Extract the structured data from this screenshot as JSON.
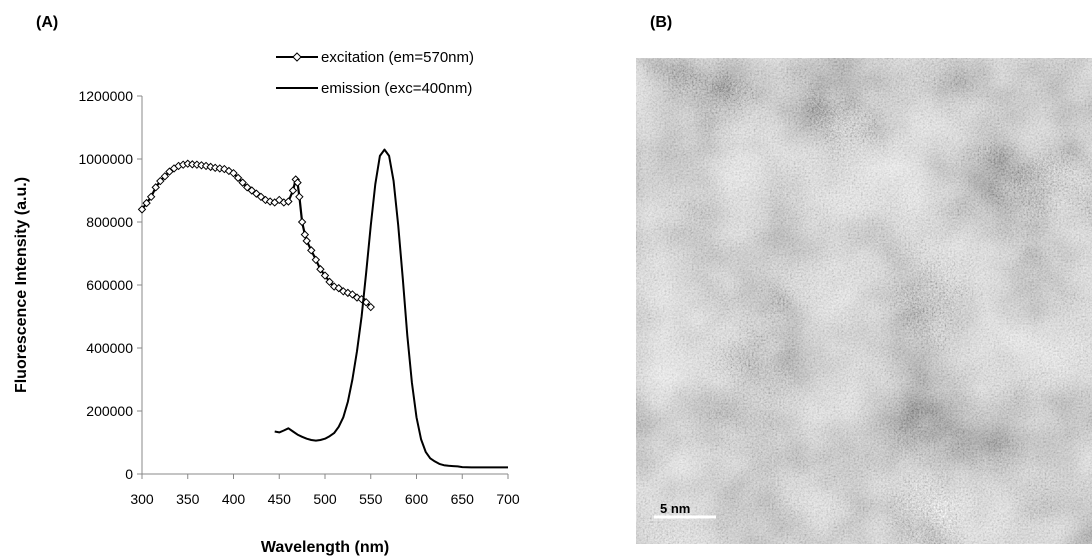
{
  "panels": {
    "a_label": "(A)",
    "b_label": "(B)"
  },
  "chart_data": {
    "type": "line",
    "xlabel": "Wavelength (nm)",
    "ylabel": "Fluorescence Intensity (a.u.)",
    "xlim": [
      300,
      700
    ],
    "ylim": [
      0,
      1200000
    ],
    "x_ticks": [
      "300",
      "350",
      "400",
      "450",
      "500",
      "550",
      "600",
      "650",
      "700"
    ],
    "y_ticks": [
      "0",
      "200000",
      "400000",
      "600000",
      "800000",
      "1000000",
      "1200000"
    ],
    "grid": false,
    "legend_position": "top-right",
    "series": [
      {
        "name": "excitation (em=570nm)",
        "marker": "diamond",
        "x": [
          300,
          305,
          310,
          315,
          320,
          325,
          330,
          335,
          340,
          345,
          350,
          355,
          360,
          365,
          370,
          375,
          380,
          385,
          390,
          395,
          400,
          405,
          410,
          415,
          420,
          425,
          430,
          435,
          440,
          445,
          450,
          455,
          460,
          465,
          468,
          470,
          472,
          475,
          478,
          480,
          485,
          490,
          495,
          500,
          505,
          510,
          515,
          520,
          525,
          530,
          535,
          540,
          545,
          550
        ],
        "y": [
          840000,
          860000,
          880000,
          910000,
          930000,
          945000,
          960000,
          970000,
          978000,
          982000,
          985000,
          983000,
          982000,
          980000,
          978000,
          975000,
          972000,
          970000,
          968000,
          962000,
          955000,
          940000,
          925000,
          910000,
          900000,
          890000,
          880000,
          870000,
          865000,
          862000,
          870000,
          862000,
          865000,
          900000,
          935000,
          925000,
          880000,
          800000,
          760000,
          740000,
          710000,
          680000,
          650000,
          630000,
          610000,
          595000,
          590000,
          580000,
          575000,
          570000,
          560000,
          555000,
          545000,
          530000
        ]
      },
      {
        "name": "emission (exc=400nm)",
        "marker": "none",
        "x": [
          445,
          450,
          455,
          460,
          465,
          470,
          475,
          480,
          485,
          490,
          495,
          500,
          505,
          510,
          515,
          520,
          525,
          530,
          535,
          540,
          545,
          550,
          555,
          560,
          565,
          570,
          575,
          580,
          585,
          590,
          595,
          600,
          605,
          610,
          615,
          620,
          625,
          630,
          635,
          640,
          645,
          650,
          660,
          670,
          680,
          690,
          700
        ],
        "y": [
          135000,
          132000,
          138000,
          145000,
          135000,
          125000,
          118000,
          112000,
          108000,
          106000,
          108000,
          112000,
          120000,
          130000,
          150000,
          180000,
          230000,
          300000,
          390000,
          500000,
          640000,
          790000,
          920000,
          1010000,
          1030000,
          1010000,
          930000,
          790000,
          620000,
          440000,
          290000,
          180000,
          110000,
          70000,
          50000,
          40000,
          32000,
          28000,
          26000,
          25000,
          24000,
          22000,
          21000,
          21000,
          21000,
          21000,
          21000
        ]
      }
    ]
  },
  "tem_image": {
    "scale_bar_label": "5 nm"
  }
}
